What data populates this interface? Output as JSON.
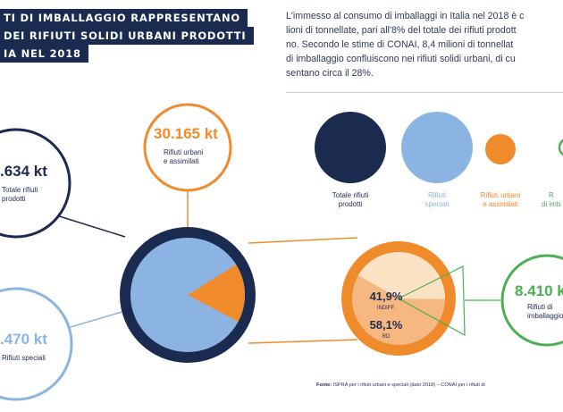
{
  "title": {
    "line1": "TI DI IMBALLAGGIO RAPPRESENTANO",
    "line2": "DEI RIFIUTI SOLIDI URBANI PRODOTTI",
    "line3": "IA NEL 2018"
  },
  "intro": {
    "line1": "L'immesso al consumo di imballaggi in Italia nel 2018 è c",
    "line2": "lioni di tonnellate, pari all'8% del totale dei rifiuti prodott",
    "line3": "no. Secondo le stime di CONAI, 8,4 milioni di tonnellat",
    "line4": "di imballaggio confluiscono nei rifiuti solidi urbani, di cu",
    "line5": "sentano circa il 28%."
  },
  "legend": [
    {
      "label_line1": "Totale rifiuti",
      "label_line2": "prodotti",
      "color": "#1b2b50"
    },
    {
      "label_line1": "Rifiuti",
      "label_line2": "speciali",
      "color": "#8cb4e3"
    },
    {
      "label_line1": "Rifiuti urbani",
      "label_line2": "e assimilati",
      "color": "#f08b2c"
    },
    {
      "label_line1": "R",
      "label_line2": "di imb",
      "color": "#4caf50"
    }
  ],
  "bubbles": {
    "total": {
      "value": ".634 kt",
      "label_line1": "Totale rifiuti",
      "label_line2": "prodotti"
    },
    "urban": {
      "value": "30.165 kt",
      "label_line1": "Rifiuti urbani",
      "label_line2": "e assimilati"
    },
    "special": {
      "value": ".470 kt",
      "label_line1": "Rifiuti speciali"
    },
    "packaging": {
      "value": "8.410 k",
      "label_line1": "Rifiuti di",
      "label_line2": "imballaggio"
    }
  },
  "split": {
    "indiff_pct": "41,9%",
    "indiff_label": "INDIFF.",
    "rd_pct": "58,1%",
    "rd_label": "RD",
    "indiff_fraction": 0.419
  },
  "source": {
    "bold": "Fonte:",
    "text": " ISPRA per i rifiuti urbani e speciali (dato 2018) – CONAI per i rifiuti di"
  },
  "colors": {
    "navy": "#1b2b50",
    "light_blue": "#8cb4e3",
    "orange": "#f08b2c",
    "cream": "#fbe2c4",
    "green": "#4caf50"
  }
}
